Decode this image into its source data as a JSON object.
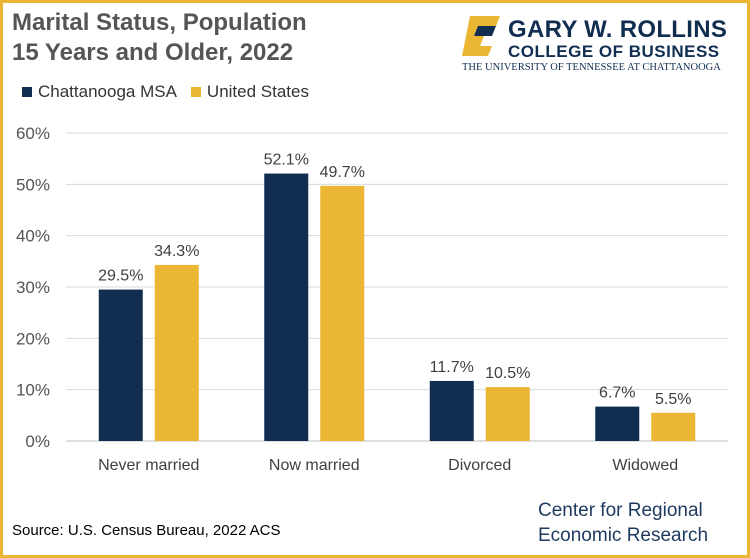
{
  "header": {
    "title_line1": "Marital Status, Population",
    "title_line2": "15 Years and Older, 2022"
  },
  "logo": {
    "line1": "GARY W. ROLLINS",
    "line2": "COLLEGE OF BUSINESS",
    "line3": "THE UNIVERSITY OF TENNESSEE AT CHATTANOOGA",
    "colors": {
      "navy": "#112E51",
      "gold": "#EBB633"
    }
  },
  "footer": {
    "source": "Source: U.S. Census Bureau, 2022 ACS",
    "center_line1": "Center for Regional",
    "center_line2": "Economic Research"
  },
  "chart_data": {
    "type": "bar",
    "categories": [
      "Never married",
      "Now married",
      "Divorced",
      "Widowed"
    ],
    "series": [
      {
        "name": "Chattanooga MSA",
        "color": "#112E51",
        "values": [
          29.5,
          52.1,
          11.7,
          6.7
        ],
        "labels": [
          "29.5%",
          "52.1%",
          "11.7%",
          "6.7%"
        ]
      },
      {
        "name": "United States",
        "color": "#EBB633",
        "values": [
          34.3,
          49.7,
          10.5,
          5.5
        ],
        "labels": [
          "34.3%",
          "49.7%",
          "10.5%",
          "5.5%"
        ]
      }
    ],
    "ylim": [
      0,
      60
    ],
    "yticks": [
      {
        "value": 0,
        "label": "0%"
      },
      {
        "value": 10,
        "label": "10%"
      },
      {
        "value": 20,
        "label": "20%"
      },
      {
        "value": 30,
        "label": "30%"
      },
      {
        "value": 40,
        "label": "40%"
      },
      {
        "value": 50,
        "label": "50%"
      },
      {
        "value": 60,
        "label": "60%"
      }
    ],
    "grid": true,
    "legend_position": "top-left"
  }
}
